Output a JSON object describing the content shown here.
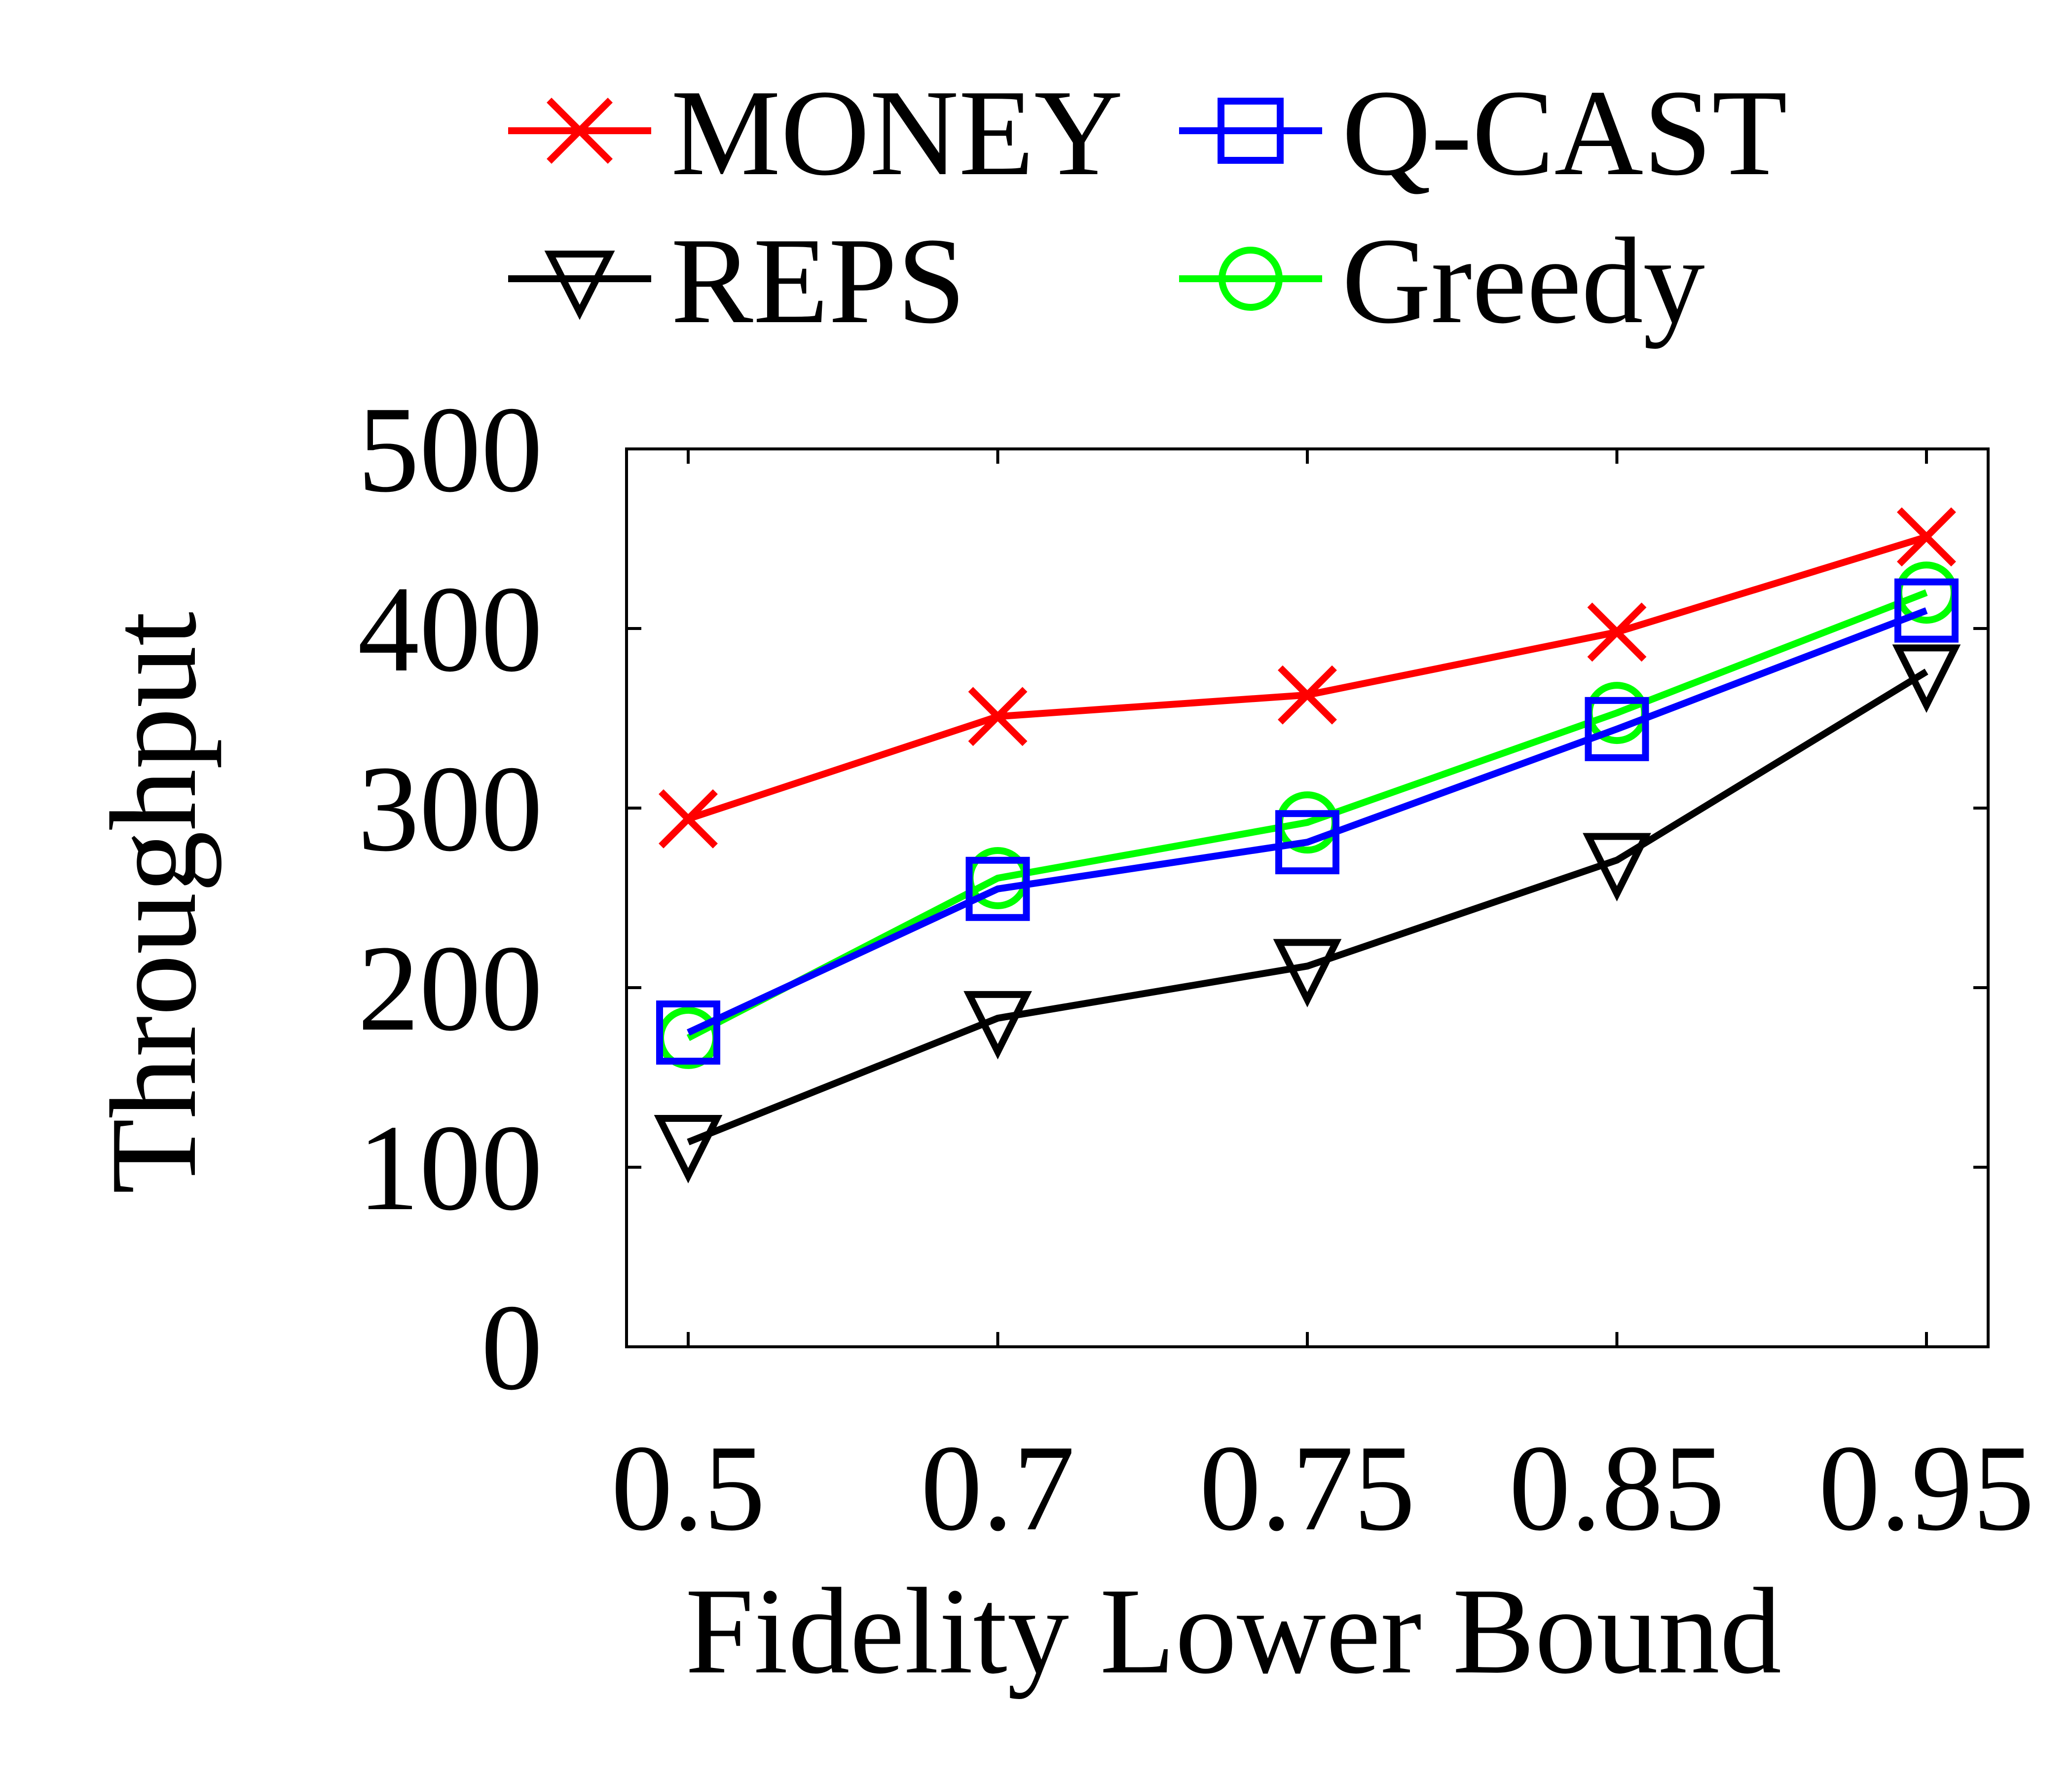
{
  "chart_data": {
    "type": "line",
    "title": "",
    "xlabel": "Fidelity Lower Bound",
    "ylabel": "Throughput",
    "categories": [
      "0.5",
      "0.7",
      "0.75",
      "0.85",
      "0.95"
    ],
    "ylim": [
      0,
      500
    ],
    "yticks": [
      "0",
      "100",
      "200",
      "300",
      "400",
      "500"
    ],
    "grid": false,
    "legend_position": "top",
    "series": [
      {
        "name": "MONEY",
        "marker": "x",
        "color": "#ff0000",
        "values": [
          294,
          351,
          363,
          398,
          451
        ]
      },
      {
        "name": "Q-CAST",
        "marker": "square",
        "color": "#0000ff",
        "values": [
          175,
          255,
          281,
          344,
          410
        ]
      },
      {
        "name": "REPS",
        "marker": "triangle-down",
        "color": "#000000",
        "values": [
          114,
          183,
          212,
          271,
          376
        ]
      },
      {
        "name": "Greedy",
        "marker": "circle",
        "color": "#00ff00",
        "values": [
          172,
          261,
          292,
          353,
          420
        ]
      }
    ]
  }
}
